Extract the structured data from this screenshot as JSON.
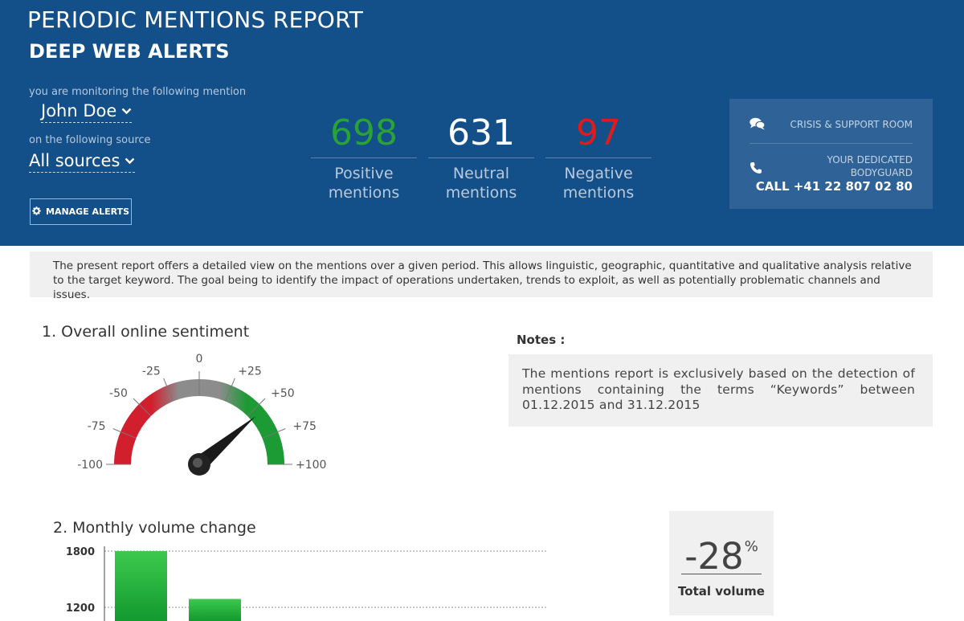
{
  "header": {
    "title": "PERIODIC MENTIONS REPORT",
    "subtitle": "DEEP WEB ALERTS",
    "mention_caption": "you are monitoring the following mention",
    "mention_value": "John Doe",
    "source_caption": "on the following source",
    "source_value": "All sources",
    "manage_alerts_label": "MANAGE ALERTS",
    "icons": [
      "chevron-down-icon",
      "gear-icon",
      "chat-bubbles-icon",
      "phone-icon"
    ]
  },
  "stats": {
    "positive": {
      "value": "698",
      "label": "Positive mentions",
      "color": "#2aa336"
    },
    "neutral": {
      "value": "631",
      "label": "Neutral mentions",
      "color": "#ffffff"
    },
    "negative": {
      "value": "97",
      "label": "Negative mentions",
      "color": "#e01b1b"
    }
  },
  "support": {
    "crisis_label": "CRISIS & SUPPORT ROOM",
    "bodyguard_label": "YOUR DEDICATED BODYGUARD",
    "phone": "CALL +41 22 807 02 80"
  },
  "intro": {
    "text": "The present report offers a detailed view on the mentions over a given period. This allows linguistic, geographic, quantitative and qualitative analysis relative to the target keyword. The goal being to identify the impact of operations undertaken, trends to exploit, as well as potentially problematic channels and issues."
  },
  "section1": {
    "title": "1. Overall online sentiment",
    "notes_title": "Notes :",
    "notes_text": "The mentions report is exclusively based on the detection of mentions containing the terms “Keywords” between 01.12.2015 and 31.12.2015"
  },
  "gauge": {
    "min": -100,
    "max": 100,
    "value": 55,
    "ticks": [
      "-100",
      "-75",
      "-50",
      "-25",
      "0",
      "+25",
      "+50",
      "+75",
      "+100"
    ],
    "colors": {
      "negative": "#d21f2e",
      "neutral": "#888888",
      "positive": "#1c9a34"
    }
  },
  "section2": {
    "title": "2. Monthly volume change",
    "total_volume_value": "-28",
    "total_volume_unit": "%",
    "total_volume_label": "Total volume"
  },
  "chart_data": {
    "type": "bar",
    "values": [
      1800,
      1290
    ],
    "y_ticks": [
      "1800",
      "1200"
    ],
    "ylim_visible": [
      1000,
      1850
    ],
    "grid": true,
    "color": "#1fae3a"
  }
}
